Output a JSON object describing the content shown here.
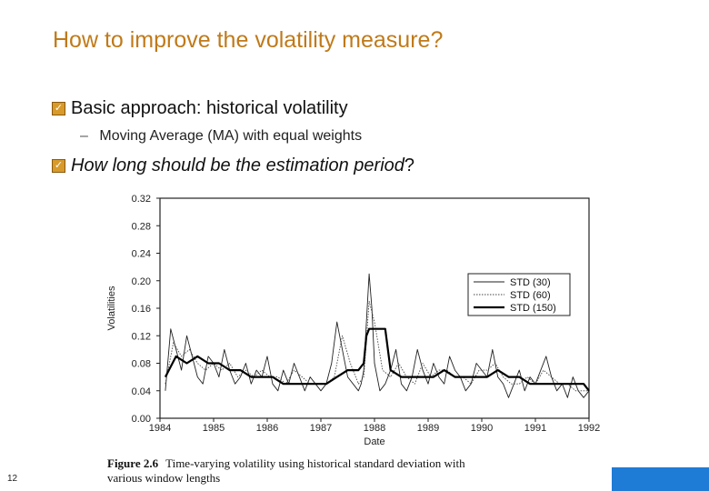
{
  "slide": {
    "title": "How to improve the volatility measure?",
    "bullet1": "Basic approach: historical volatility",
    "sub1": "Moving Average (MA) with equal weights",
    "bullet2_main": "How long should be the estimation period",
    "bullet2_q": "?",
    "page_number": "12",
    "bullet_icon": "checkbox-bullet-icon"
  },
  "figure": {
    "caption_label": "Figure 2.6",
    "caption_line1": "Time-varying volatility using historical standard deviation with",
    "caption_line2": "various window lengths"
  },
  "colors": {
    "title": "#c07a1a",
    "bar": "#1e7bd6",
    "bullet": "#d89a2a"
  },
  "chart_data": {
    "type": "line",
    "xlabel": "Date",
    "ylabel": "Volatilities",
    "xlim": [
      1984,
      1992
    ],
    "ylim": [
      0,
      0.32
    ],
    "x_ticks": [
      "1984",
      "1985",
      "1986",
      "1987",
      "1988",
      "1989",
      "1990",
      "1991",
      "1992"
    ],
    "y_ticks": [
      "0.00",
      "0.04",
      "0.08",
      "0.12",
      "0.16",
      "0.20",
      "0.24",
      "0.28",
      "0.32"
    ],
    "legend": [
      "STD (30)",
      "STD (60)",
      "STD (150)"
    ],
    "legend_position": "right",
    "series": [
      {
        "name": "STD (30)",
        "style": "thin-solid",
        "x": [
          1984.1,
          1984.2,
          1984.3,
          1984.4,
          1984.5,
          1984.6,
          1984.7,
          1984.8,
          1984.9,
          1985.0,
          1985.1,
          1985.2,
          1985.3,
          1985.4,
          1985.5,
          1985.6,
          1985.7,
          1985.8,
          1985.9,
          1986.0,
          1986.1,
          1986.2,
          1986.3,
          1986.4,
          1986.5,
          1986.6,
          1986.7,
          1986.8,
          1986.9,
          1987.0,
          1987.1,
          1987.2,
          1987.3,
          1987.4,
          1987.5,
          1987.6,
          1987.7,
          1987.75,
          1987.8,
          1987.85,
          1987.9,
          1987.95,
          1988.0,
          1988.1,
          1988.2,
          1988.3,
          1988.4,
          1988.5,
          1988.6,
          1988.7,
          1988.8,
          1988.9,
          1989.0,
          1989.1,
          1989.2,
          1989.3,
          1989.4,
          1989.5,
          1989.6,
          1989.7,
          1989.8,
          1989.9,
          1990.0,
          1990.1,
          1990.2,
          1990.3,
          1990.4,
          1990.5,
          1990.6,
          1990.7,
          1990.8,
          1990.9,
          1991.0,
          1991.1,
          1991.2,
          1991.3,
          1991.4,
          1991.5,
          1991.6,
          1991.7,
          1991.8,
          1991.9,
          1992.0
        ],
        "values": [
          0.04,
          0.13,
          0.1,
          0.07,
          0.12,
          0.09,
          0.06,
          0.05,
          0.09,
          0.08,
          0.06,
          0.1,
          0.07,
          0.05,
          0.06,
          0.08,
          0.05,
          0.07,
          0.06,
          0.09,
          0.05,
          0.04,
          0.07,
          0.05,
          0.08,
          0.06,
          0.04,
          0.06,
          0.05,
          0.04,
          0.05,
          0.08,
          0.14,
          0.1,
          0.06,
          0.05,
          0.04,
          0.05,
          0.07,
          0.14,
          0.21,
          0.16,
          0.08,
          0.04,
          0.05,
          0.07,
          0.1,
          0.05,
          0.04,
          0.06,
          0.1,
          0.07,
          0.05,
          0.08,
          0.06,
          0.05,
          0.09,
          0.07,
          0.06,
          0.04,
          0.05,
          0.08,
          0.07,
          0.06,
          0.1,
          0.06,
          0.05,
          0.03,
          0.05,
          0.07,
          0.04,
          0.06,
          0.05,
          0.07,
          0.09,
          0.06,
          0.04,
          0.05,
          0.03,
          0.06,
          0.04,
          0.03,
          0.04
        ]
      },
      {
        "name": "STD (60)",
        "style": "dotted",
        "x": [
          1984.1,
          1984.25,
          1984.4,
          1984.55,
          1984.7,
          1984.85,
          1985.0,
          1985.15,
          1985.3,
          1985.45,
          1985.6,
          1985.75,
          1985.9,
          1986.05,
          1986.2,
          1986.35,
          1986.5,
          1986.65,
          1986.8,
          1986.95,
          1987.1,
          1987.25,
          1987.4,
          1987.55,
          1987.7,
          1987.8,
          1987.9,
          1988.0,
          1988.15,
          1988.3,
          1988.45,
          1988.6,
          1988.75,
          1988.9,
          1989.05,
          1989.2,
          1989.35,
          1989.5,
          1989.65,
          1989.8,
          1989.95,
          1990.1,
          1990.25,
          1990.4,
          1990.55,
          1990.7,
          1990.85,
          1991.0,
          1991.15,
          1991.3,
          1991.45,
          1991.6,
          1991.75,
          1991.9,
          1992.0
        ],
        "values": [
          0.05,
          0.11,
          0.09,
          0.1,
          0.08,
          0.07,
          0.08,
          0.07,
          0.08,
          0.06,
          0.07,
          0.06,
          0.07,
          0.06,
          0.06,
          0.05,
          0.07,
          0.06,
          0.05,
          0.05,
          0.05,
          0.06,
          0.12,
          0.08,
          0.05,
          0.06,
          0.17,
          0.14,
          0.07,
          0.06,
          0.08,
          0.06,
          0.05,
          0.08,
          0.06,
          0.07,
          0.07,
          0.06,
          0.06,
          0.05,
          0.07,
          0.07,
          0.08,
          0.06,
          0.05,
          0.05,
          0.06,
          0.05,
          0.07,
          0.06,
          0.05,
          0.05,
          0.04,
          0.04,
          0.04
        ]
      },
      {
        "name": "STD (150)",
        "style": "thick-solid",
        "x": [
          1984.1,
          1984.3,
          1984.5,
          1984.7,
          1984.9,
          1985.1,
          1985.3,
          1985.5,
          1985.7,
          1985.9,
          1986.1,
          1986.3,
          1986.5,
          1986.7,
          1986.9,
          1987.1,
          1987.3,
          1987.5,
          1987.7,
          1987.8,
          1987.85,
          1987.9,
          1988.0,
          1988.1,
          1988.2,
          1988.3,
          1988.5,
          1988.7,
          1988.9,
          1989.1,
          1989.3,
          1989.5,
          1989.7,
          1989.9,
          1990.1,
          1990.3,
          1990.5,
          1990.7,
          1990.9,
          1991.1,
          1991.3,
          1991.5,
          1991.7,
          1991.9,
          1992.0
        ],
        "values": [
          0.06,
          0.09,
          0.08,
          0.09,
          0.08,
          0.08,
          0.07,
          0.07,
          0.06,
          0.06,
          0.06,
          0.05,
          0.05,
          0.05,
          0.05,
          0.05,
          0.06,
          0.07,
          0.07,
          0.08,
          0.12,
          0.13,
          0.13,
          0.13,
          0.13,
          0.07,
          0.06,
          0.06,
          0.06,
          0.06,
          0.07,
          0.06,
          0.06,
          0.06,
          0.06,
          0.07,
          0.06,
          0.06,
          0.05,
          0.05,
          0.05,
          0.05,
          0.05,
          0.05,
          0.04
        ]
      }
    ]
  }
}
